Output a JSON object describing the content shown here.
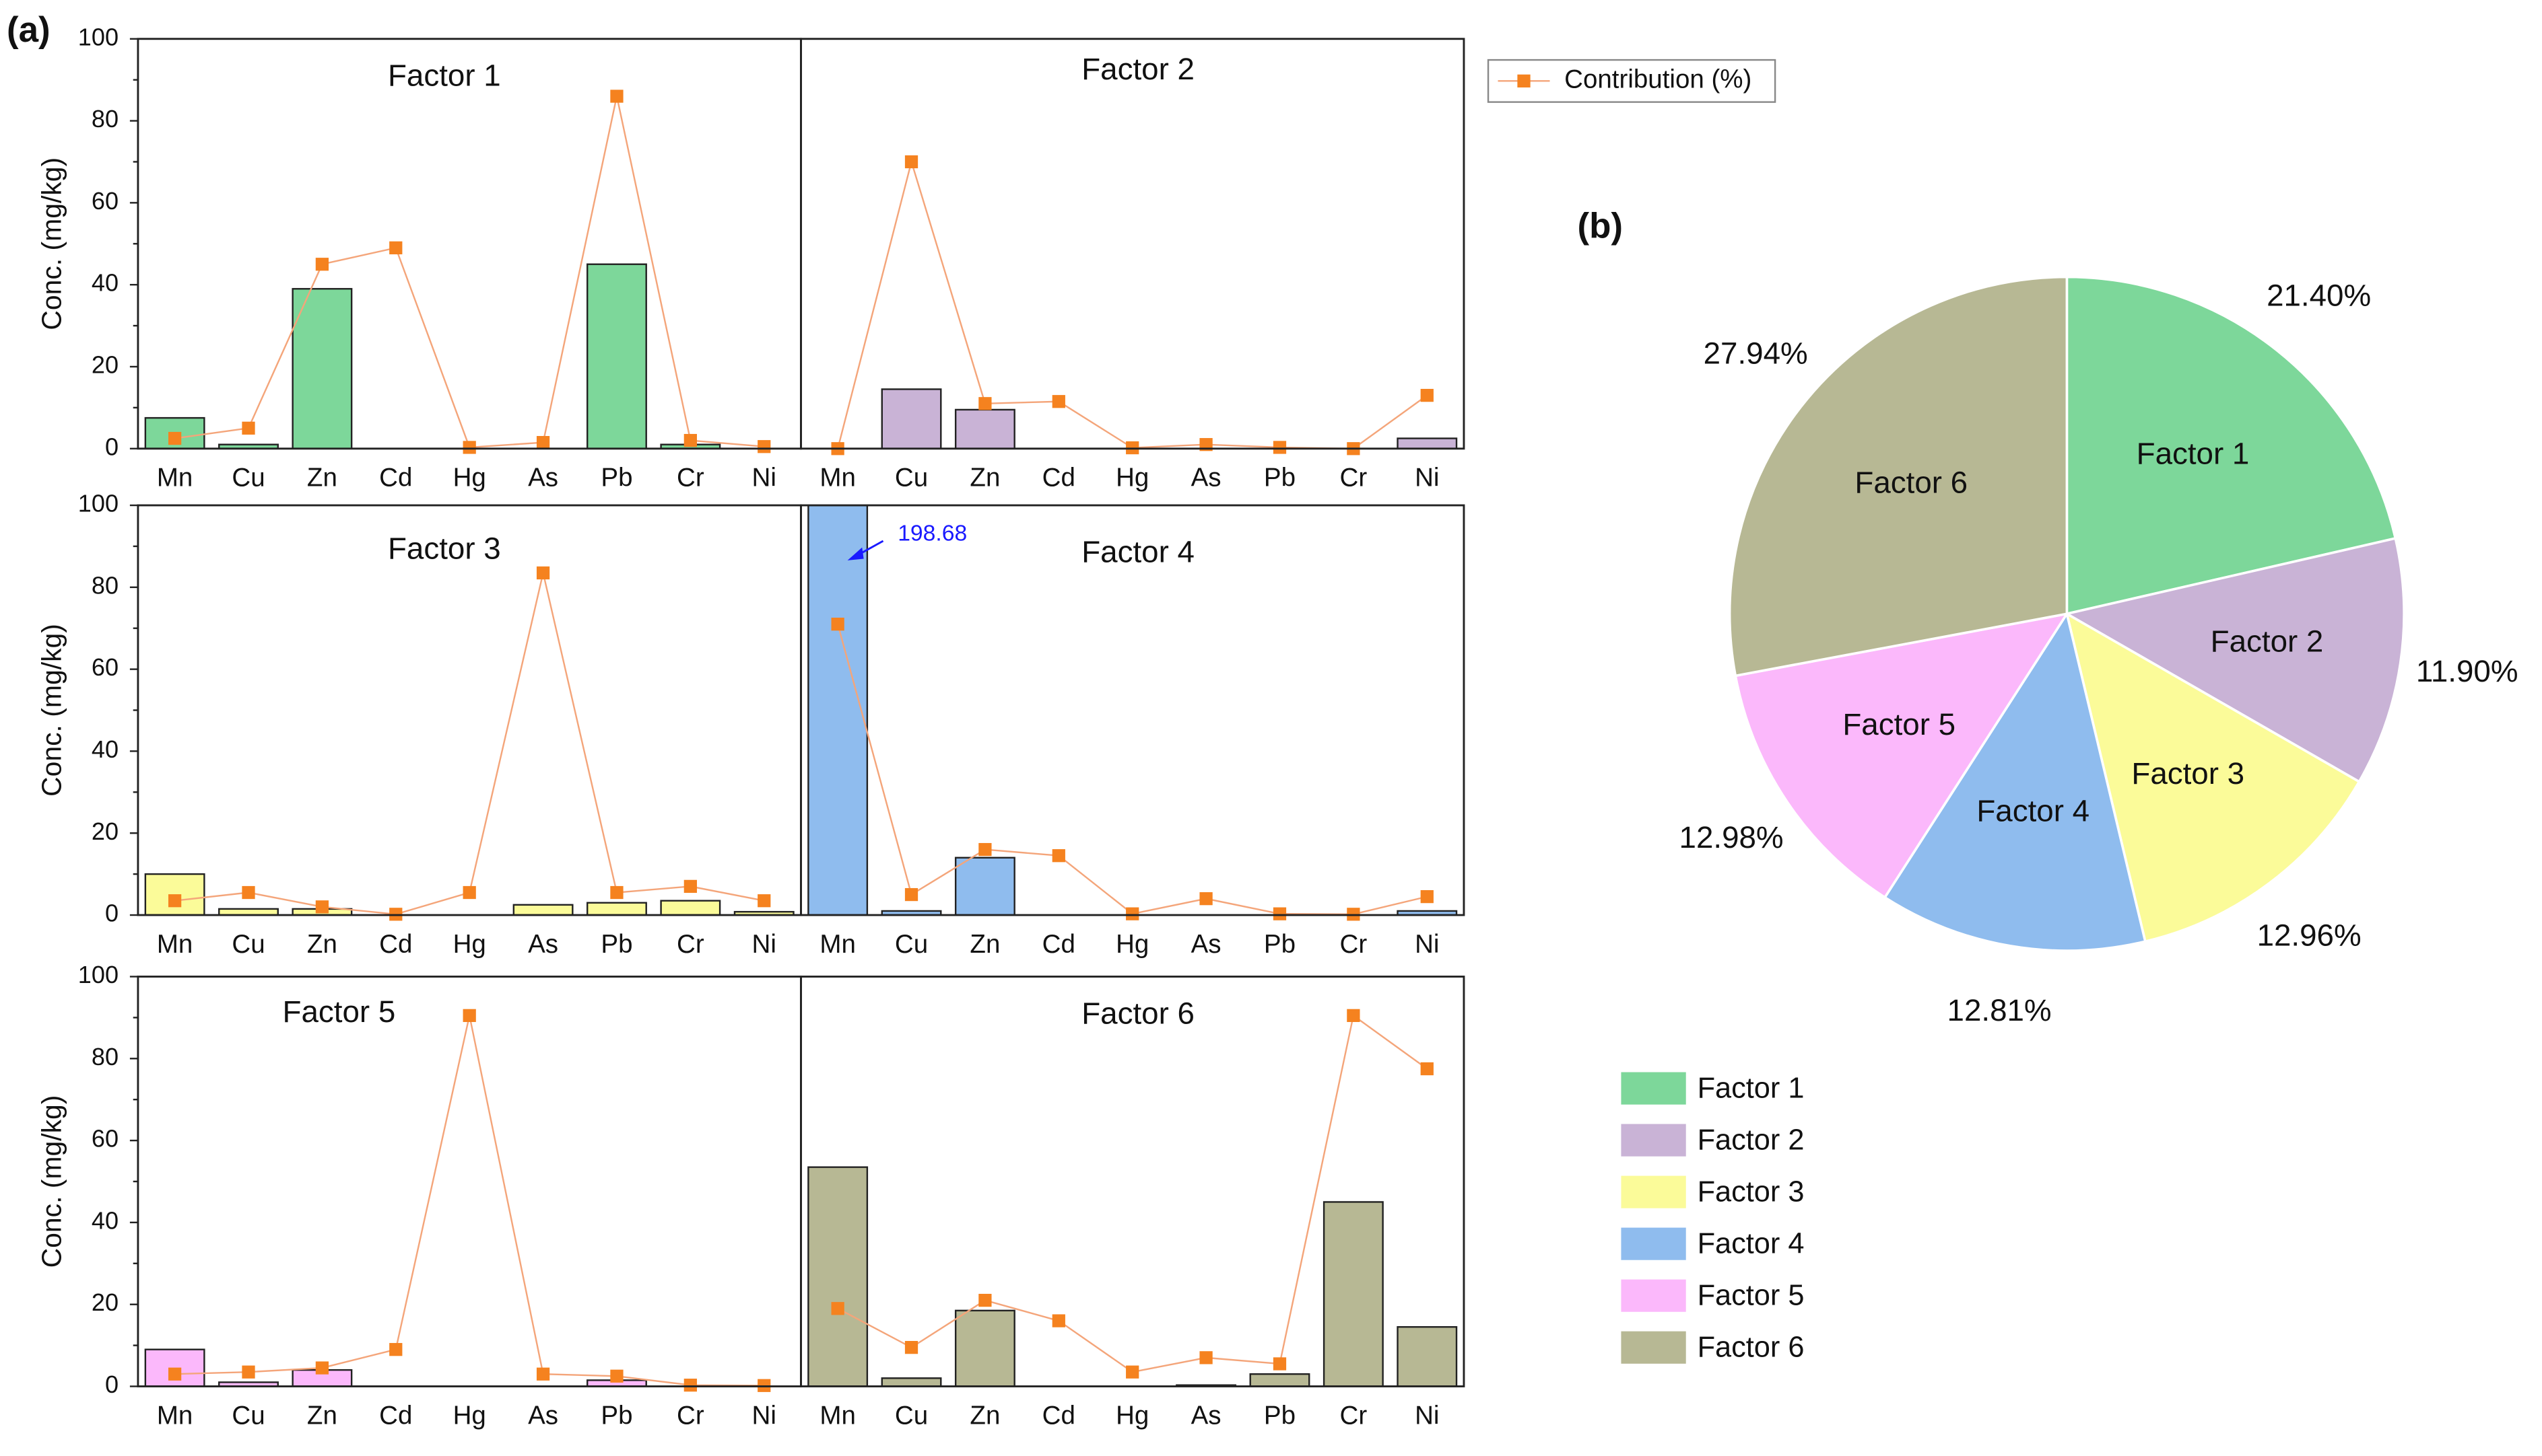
{
  "chart_data": [
    {
      "type": "bar",
      "label": "(a)",
      "title": "Factor 1",
      "ylabel": "Conc. (mg/kg)",
      "categories": [
        "Mn",
        "Cu",
        "Zn",
        "Cd",
        "Hg",
        "As",
        "Pb",
        "Cr",
        "Ni"
      ],
      "values": [
        7.5,
        1,
        39,
        0,
        0,
        0,
        45,
        1,
        0
      ],
      "color": "#7dd79a",
      "ylim": [
        0,
        100
      ],
      "yticks": [
        0,
        20,
        40,
        60,
        80,
        100
      ],
      "line": {
        "name": "Contribution (%)",
        "color": "#f4a57a",
        "marker_color": "#f5821f",
        "values": [
          2.5,
          5,
          45,
          49,
          0.3,
          1.5,
          86,
          2,
          0.5
        ]
      }
    },
    {
      "type": "bar",
      "title": "Factor 2",
      "categories": [
        "Mn",
        "Cu",
        "Zn",
        "Cd",
        "Hg",
        "As",
        "Pb",
        "Cr",
        "Ni"
      ],
      "values": [
        0,
        14.5,
        9.5,
        0,
        0,
        0,
        0,
        0,
        2.5
      ],
      "color": "#c9b3d6",
      "ylim": [
        0,
        100
      ],
      "line": {
        "color": "#f4a57a",
        "marker_color": "#f5821f",
        "values": [
          0,
          70,
          11,
          11.5,
          0.2,
          1,
          0.3,
          0,
          13
        ]
      }
    },
    {
      "type": "bar",
      "title": "Factor 3",
      "ylabel": "Conc. (mg/kg)",
      "categories": [
        "Mn",
        "Cu",
        "Zn",
        "Cd",
        "Hg",
        "As",
        "Pb",
        "Cr",
        "Ni"
      ],
      "values": [
        10,
        1.5,
        1.5,
        0,
        0,
        2.5,
        3,
        3.5,
        0.8
      ],
      "color": "#fbfb99",
      "ylim": [
        0,
        100
      ],
      "yticks": [
        0,
        20,
        40,
        60,
        80,
        100
      ],
      "line": {
        "color": "#f4a57a",
        "marker_color": "#f5821f",
        "values": [
          3.5,
          5.5,
          2,
          0.2,
          5.5,
          83.5,
          5.5,
          7,
          3.5
        ]
      }
    },
    {
      "type": "bar",
      "title": "Factor 4",
      "categories": [
        "Mn",
        "Cu",
        "Zn",
        "Cd",
        "Hg",
        "As",
        "Pb",
        "Cr",
        "Ni"
      ],
      "values": [
        198.68,
        1,
        14,
        0,
        0,
        0,
        0,
        0,
        1
      ],
      "value_labels": [
        "198.68",
        null,
        null,
        null,
        null,
        null,
        null,
        null,
        null
      ],
      "color": "#8fbcee",
      "ylim": [
        0,
        100
      ],
      "line": {
        "color": "#f4a57a",
        "marker_color": "#f5821f",
        "values": [
          71,
          5,
          16,
          14.5,
          0.3,
          4,
          0.3,
          0.2,
          4.5
        ]
      }
    },
    {
      "type": "bar",
      "title": "Factor 5",
      "ylabel": "Conc. (mg/kg)",
      "categories": [
        "Mn",
        "Cu",
        "Zn",
        "Cd",
        "Hg",
        "As",
        "Pb",
        "Cr",
        "Ni"
      ],
      "values": [
        9,
        1,
        4,
        0,
        0,
        0,
        1.5,
        0,
        0
      ],
      "color": "#fbb8fb",
      "ylim": [
        0,
        100
      ],
      "yticks": [
        0,
        20,
        40,
        60,
        80,
        100
      ],
      "line": {
        "color": "#f4a57a",
        "marker_color": "#f5821f",
        "values": [
          3,
          3.5,
          4.5,
          9,
          90.5,
          3,
          2.5,
          0.3,
          0.2
        ]
      }
    },
    {
      "type": "bar",
      "title": "Factor 6",
      "categories": [
        "Mn",
        "Cu",
        "Zn",
        "Cd",
        "Hg",
        "As",
        "Pb",
        "Cr",
        "Ni"
      ],
      "values": [
        53.5,
        2,
        18.5,
        0,
        0,
        0.3,
        3,
        45,
        14.5
      ],
      "color": "#b7b894",
      "ylim": [
        0,
        100
      ],
      "line": {
        "color": "#f4a57a",
        "marker_color": "#f5821f",
        "values": [
          19,
          9.5,
          21,
          16,
          3.5,
          7,
          5.5,
          90.5,
          77.5
        ]
      }
    },
    {
      "type": "pie",
      "label": "(b)",
      "categories": [
        "Factor 1",
        "Factor 2",
        "Factor 3",
        "Factor 4",
        "Factor 5",
        "Factor 6"
      ],
      "values": [
        21.4,
        11.9,
        12.96,
        12.81,
        12.98,
        27.94
      ],
      "value_labels": [
        "21.40%",
        "11.90%",
        "12.96%",
        "12.81%",
        "12.98%",
        "27.94%"
      ],
      "colors": [
        "#7dd79a",
        "#c9b3d6",
        "#fbfb99",
        "#8fbcee",
        "#fbb8fb",
        "#b7b894"
      ]
    }
  ]
}
